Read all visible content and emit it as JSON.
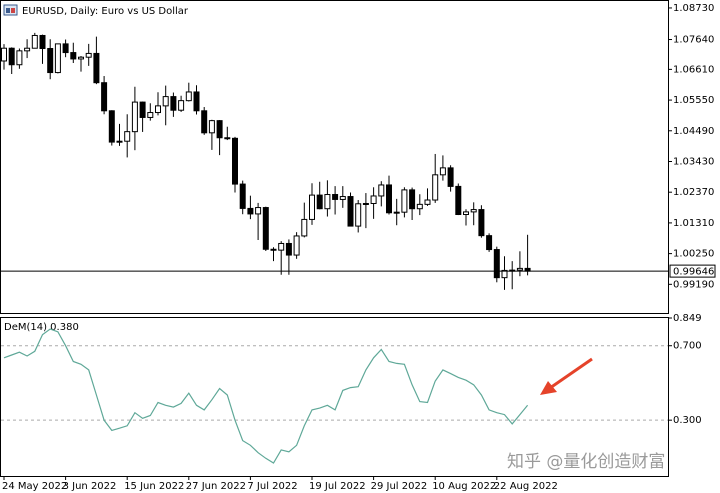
{
  "chart_data": [
    {
      "type": "candlestick",
      "title": "EURUSD, Daily: Euro vs US Dollar",
      "x": [
        "24 May 2022",
        null,
        null,
        null,
        null,
        null,
        null,
        null,
        "3 Jun 2022",
        null,
        null,
        null,
        null,
        null,
        null,
        null,
        "15 Jun 2022",
        null,
        null,
        null,
        null,
        null,
        null,
        null,
        "27 Jun 2022",
        null,
        null,
        null,
        null,
        null,
        null,
        null,
        "7 Jul 2022",
        null,
        null,
        null,
        null,
        null,
        null,
        null,
        "19 Jul 2022",
        null,
        null,
        null,
        null,
        null,
        null,
        null,
        "29 Jul 2022",
        null,
        null,
        null,
        null,
        null,
        null,
        null,
        "10 Aug 2022",
        null,
        null,
        null,
        null,
        null,
        null,
        null,
        "22 Aug 2022",
        null,
        null,
        null,
        null
      ],
      "open": [
        1.069,
        1.0734,
        1.0677,
        1.0725,
        1.0734,
        1.0778,
        1.0733,
        1.065,
        1.0749,
        1.0719,
        1.0697,
        1.0703,
        1.0716,
        1.0615,
        1.0518,
        1.041,
        1.0413,
        1.0446,
        1.0548,
        1.0495,
        1.0512,
        1.0535,
        1.0567,
        1.052,
        1.0553,
        1.0583,
        1.0518,
        1.0442,
        1.0484,
        1.0425,
        1.0423,
        1.0265,
        1.0181,
        1.0162,
        1.0184,
        1.004,
        1.0037,
        1.006,
        1.002,
        1.0086,
        1.0143,
        1.0227,
        1.018,
        1.0229,
        1.0212,
        1.0222,
        1.012,
        1.0197,
        1.0198,
        1.0224,
        1.0262,
        1.0166,
        1.0168,
        1.0245,
        1.018,
        1.0195,
        1.021,
        1.0297,
        1.0321,
        1.0257,
        1.016,
        1.0169,
        1.0177,
        1.0087,
        1.0039,
        0.9942,
        0.9967,
        0.9968,
        0.9974
      ],
      "high": [
        1.0748,
        1.0737,
        1.0733,
        1.0765,
        1.0787,
        1.0781,
        1.0765,
        1.075,
        1.0764,
        1.0753,
        1.0707,
        1.0749,
        1.0774,
        1.0638,
        1.052,
        1.0473,
        1.0506,
        1.0601,
        1.055,
        1.0544,
        1.0582,
        1.0605,
        1.0581,
        1.057,
        1.0615,
        1.0606,
        1.0531,
        1.0487,
        1.0486,
        1.0463,
        1.0428,
        1.0277,
        1.0225,
        1.02,
        1.0187,
        1.0047,
        1.0068,
        1.0074,
        1.0099,
        1.0201,
        1.0268,
        1.0273,
        1.0278,
        1.0258,
        1.0258,
        1.0236,
        1.021,
        1.0234,
        1.0254,
        1.0275,
        1.0294,
        1.0214,
        1.0254,
        1.0253,
        1.023,
        1.025,
        1.0369,
        1.0364,
        1.033,
        1.0267,
        1.0178,
        1.0202,
        1.0192,
        1.0095,
        1.0049,
        1.0016,
        0.9999,
        1.0033,
        1.009
      ],
      "low": [
        1.066,
        1.0645,
        1.0663,
        1.07,
        1.0735,
        1.068,
        1.0627,
        1.0647,
        1.0703,
        1.0683,
        1.0653,
        1.0673,
        1.061,
        1.0506,
        1.0398,
        1.0397,
        1.0357,
        1.0382,
        1.0445,
        1.0484,
        1.0502,
        1.0468,
        1.0497,
        1.0514,
        1.055,
        1.0505,
        1.0435,
        1.0383,
        1.0365,
        1.0417,
        1.0236,
        1.0161,
        1.0144,
        1.0072,
        1.0034,
        0.9999,
        0.9952,
        0.9952,
        1.0007,
        1.0081,
        1.0124,
        1.0178,
        1.0153,
        1.016,
        1.0183,
        1.0121,
        1.0098,
        1.0113,
        1.0145,
        1.0188,
        1.016,
        1.0123,
        1.015,
        1.0141,
        1.0158,
        1.019,
        1.02,
        1.0277,
        1.0239,
        1.0158,
        1.0122,
        1.0123,
        1.008,
        1.0031,
        0.9926,
        0.99,
        0.9902,
        0.9947,
        0.995
      ],
      "close": [
        1.0734,
        1.0677,
        1.0725,
        1.0734,
        1.0778,
        1.0733,
        1.065,
        1.0749,
        1.0719,
        1.0697,
        1.0703,
        1.0716,
        1.0615,
        1.0518,
        1.041,
        1.0413,
        1.0446,
        1.0548,
        1.0495,
        1.0512,
        1.0535,
        1.0567,
        1.052,
        1.0553,
        1.0583,
        1.0518,
        1.0442,
        1.0484,
        1.0425,
        1.0423,
        1.0265,
        1.0181,
        1.0162,
        1.0184,
        1.004,
        1.0037,
        1.006,
        1.002,
        1.0086,
        1.0143,
        1.0227,
        1.018,
        1.0229,
        1.0212,
        1.0222,
        1.012,
        1.0197,
        1.0198,
        1.0224,
        1.0262,
        1.0166,
        1.0168,
        1.0245,
        1.018,
        1.0195,
        1.021,
        1.0297,
        1.0321,
        1.0257,
        1.016,
        1.0169,
        1.0177,
        1.0087,
        1.0039,
        0.9942,
        0.9967,
        0.9968,
        0.9974,
        0.99646
      ],
      "ylim": [
        0.982,
        1.0897
      ],
      "yticks": [
        {
          "value": 1.0873,
          "label": "1.08730"
        },
        {
          "value": 1.0764,
          "label": "1.07640"
        },
        {
          "value": 1.0661,
          "label": "1.06610"
        },
        {
          "value": 1.0555,
          "label": "1.05550"
        },
        {
          "value": 1.0449,
          "label": "1.04490"
        },
        {
          "value": 1.0343,
          "label": "1.03430"
        },
        {
          "value": 1.0237,
          "label": "1.02370"
        },
        {
          "value": 1.0131,
          "label": "1.01310"
        },
        {
          "value": 1.0025,
          "label": "1.00250"
        },
        {
          "value": 0.9919,
          "label": "0.99190"
        }
      ],
      "last_price": {
        "value": 0.99646,
        "label": "0.99646"
      }
    },
    {
      "type": "line",
      "title": "DeM(14) 0.380",
      "color": "#5fa898",
      "values": [
        0.635,
        0.65,
        0.665,
        0.645,
        0.67,
        0.76,
        0.79,
        0.775,
        0.7,
        0.615,
        0.6,
        0.57,
        0.435,
        0.3,
        0.245,
        0.257,
        0.27,
        0.34,
        0.31,
        0.325,
        0.395,
        0.38,
        0.37,
        0.39,
        0.445,
        0.38,
        0.355,
        0.41,
        0.47,
        0.435,
        0.3,
        0.19,
        0.165,
        0.125,
        0.095,
        0.07,
        0.14,
        0.13,
        0.165,
        0.27,
        0.355,
        0.365,
        0.38,
        0.355,
        0.46,
        0.475,
        0.48,
        0.57,
        0.635,
        0.68,
        0.615,
        0.605,
        0.6,
        0.49,
        0.4,
        0.395,
        0.51,
        0.57,
        0.55,
        0.53,
        0.515,
        0.49,
        0.435,
        0.355,
        0.34,
        0.33,
        0.28,
        0.33,
        0.38
      ],
      "ylim": [
        0,
        0.849
      ],
      "yticks": [
        0.849,
        {
          "value": 0.7,
          "label": "0.700"
        },
        {
          "value": 0.3,
          "label": "0.300"
        }
      ],
      "grid": true
    },
    {
      "watermark": "知乎 @量化创造财富"
    }
  ]
}
